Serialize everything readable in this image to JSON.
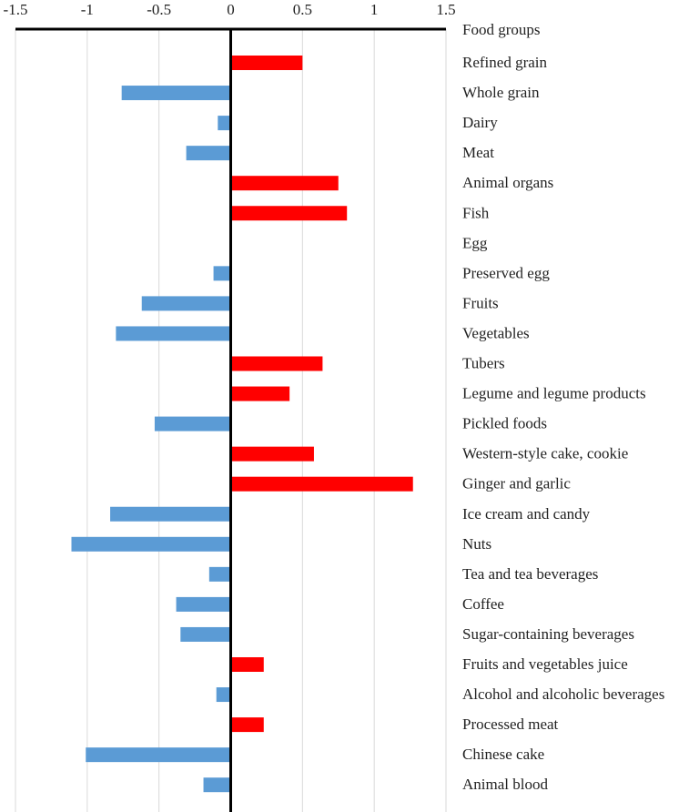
{
  "chart_data": {
    "type": "bar",
    "orientation": "horizontal",
    "title": "",
    "xlabel": "",
    "ylabel": "Food groups",
    "xlim": [
      -1.5,
      1.5
    ],
    "x_ticks": [
      -1.5,
      -1,
      -0.5,
      0,
      0.5,
      1,
      1.5
    ],
    "x_tick_labels": [
      "-1.5",
      "-1",
      "-0.5",
      "0",
      "0.5",
      "1",
      "1.5"
    ],
    "axis_position": "top",
    "grid": true,
    "colors": {
      "positive": "#ff0000",
      "negative": "#5b9bd5"
    },
    "header_label": "Food groups",
    "categories": [
      "Refined grain",
      "Whole grain",
      "Dairy",
      "Meat",
      "Animal organs",
      "Fish",
      "Egg",
      "Preserved egg",
      "Fruits",
      "Vegetables",
      "Tubers",
      "Legume and legume products",
      "Pickled foods",
      "Western-style cake, cookie",
      "Ginger and garlic",
      "Ice cream and candy",
      "Nuts",
      "Tea and tea beverages",
      "Coffee",
      "Sugar-containing beverages",
      "Fruits and vegetables juice",
      "Alcohol and alcoholic beverages",
      "Processed meat",
      "Chinese cake",
      "Animal blood"
    ],
    "values": [
      0.5,
      -0.76,
      -0.09,
      -0.31,
      0.75,
      0.81,
      0.0,
      -0.12,
      -0.62,
      -0.8,
      0.64,
      0.41,
      -0.53,
      0.58,
      1.27,
      -0.84,
      -1.11,
      -0.15,
      -0.38,
      -0.35,
      0.23,
      -0.1,
      0.23,
      -1.01,
      -0.19
    ]
  }
}
